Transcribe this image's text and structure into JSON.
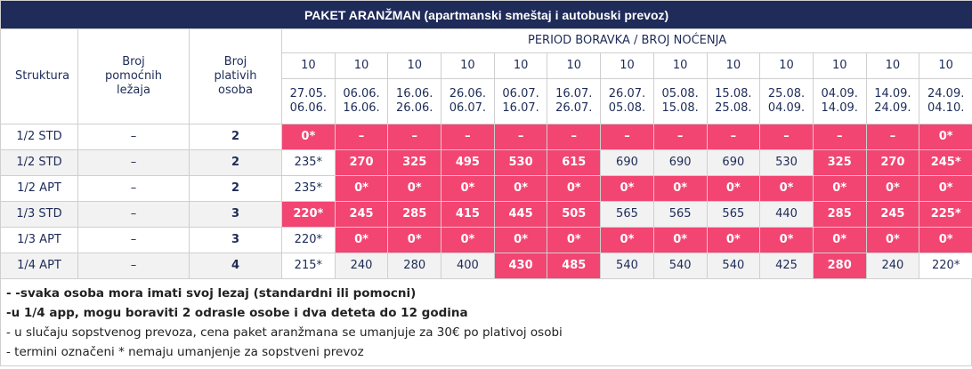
{
  "table": {
    "title": "PAKET ARANŽMAN (apartmanski smeštaj i autobuski prevoz)",
    "headers": {
      "structure": "Struktura",
      "extra_beds": "Broj pomoćnih ležaja",
      "paying_persons": "Broj plativih osoba",
      "period": "PERIOD BORAVKA / BROJ NOĆENJA"
    },
    "nights": [
      "10",
      "10",
      "10",
      "10",
      "10",
      "10",
      "10",
      "10",
      "10",
      "10",
      "10",
      "10",
      "10"
    ],
    "periods": [
      {
        "from": "27.05.",
        "to": "06.06."
      },
      {
        "from": "06.06.",
        "to": "16.06."
      },
      {
        "from": "16.06.",
        "to": "26.06."
      },
      {
        "from": "26.06.",
        "to": "06.07."
      },
      {
        "from": "06.07.",
        "to": "16.07."
      },
      {
        "from": "16.07.",
        "to": "26.07."
      },
      {
        "from": "26.07.",
        "to": "05.08."
      },
      {
        "from": "05.08.",
        "to": "15.08."
      },
      {
        "from": "15.08.",
        "to": "25.08."
      },
      {
        "from": "25.08.",
        "to": "04.09."
      },
      {
        "from": "04.09.",
        "to": "14.09."
      },
      {
        "from": "14.09.",
        "to": "24.09."
      },
      {
        "from": "24.09.",
        "to": "04.10."
      }
    ],
    "rows": [
      {
        "structure": "1/2 STD",
        "extra_beds": "–",
        "paying_persons": "2",
        "row_fill": "#ffffff",
        "prices": [
          "0*",
          "–",
          "–",
          "–",
          "–",
          "–",
          "–",
          "–",
          "–",
          "–",
          "–",
          "–",
          "0*"
        ],
        "fills": [
          "#f24572",
          "#f24572",
          "#f24572",
          "#f24572",
          "#f24572",
          "#f24572",
          "#f24572",
          "#f24572",
          "#f24572",
          "#f24572",
          "#f24572",
          "#f24572",
          "#f24572"
        ]
      },
      {
        "structure": "1/2 STD",
        "extra_beds": "–",
        "paying_persons": "2",
        "row_fill": "#f2f2f2",
        "prices": [
          "235*",
          "270",
          "325",
          "495",
          "530",
          "615",
          "690",
          "690",
          "690",
          "530",
          "325",
          "270",
          "245*"
        ],
        "fills": [
          "#ffffff",
          "#f24572",
          "#f24572",
          "#f24572",
          "#f24572",
          "#f24572",
          "#f2f2f2",
          "#f2f2f2",
          "#f2f2f2",
          "#f2f2f2",
          "#f24572",
          "#f24572",
          "#f24572"
        ]
      },
      {
        "structure": "1/2 APT",
        "extra_beds": "–",
        "paying_persons": "2",
        "row_fill": "#ffffff",
        "prices": [
          "235*",
          "0*",
          "0*",
          "0*",
          "0*",
          "0*",
          "0*",
          "0*",
          "0*",
          "0*",
          "0*",
          "0*",
          "0*"
        ],
        "fills": [
          "#ffffff",
          "#f24572",
          "#f24572",
          "#f24572",
          "#f24572",
          "#f24572",
          "#f24572",
          "#f24572",
          "#f24572",
          "#f24572",
          "#f24572",
          "#f24572",
          "#f24572"
        ]
      },
      {
        "structure": "1/3 STD",
        "extra_beds": "–",
        "paying_persons": "3",
        "row_fill": "#f2f2f2",
        "prices": [
          "220*",
          "245",
          "285",
          "415",
          "445",
          "505",
          "565",
          "565",
          "565",
          "440",
          "285",
          "245",
          "225*"
        ],
        "fills": [
          "#f24572",
          "#f24572",
          "#f24572",
          "#f24572",
          "#f24572",
          "#f24572",
          "#f2f2f2",
          "#f2f2f2",
          "#f2f2f2",
          "#f2f2f2",
          "#f24572",
          "#f24572",
          "#f24572"
        ]
      },
      {
        "structure": "1/3 APT",
        "extra_beds": "–",
        "paying_persons": "3",
        "row_fill": "#ffffff",
        "prices": [
          "220*",
          "0*",
          "0*",
          "0*",
          "0*",
          "0*",
          "0*",
          "0*",
          "0*",
          "0*",
          "0*",
          "0*",
          "0*"
        ],
        "fills": [
          "#ffffff",
          "#f24572",
          "#f24572",
          "#f24572",
          "#f24572",
          "#f24572",
          "#f24572",
          "#f24572",
          "#f24572",
          "#f24572",
          "#f24572",
          "#f24572",
          "#f24572"
        ]
      },
      {
        "structure": "1/4 APT",
        "extra_beds": "–",
        "paying_persons": "4",
        "row_fill": "#f2f2f2",
        "prices": [
          "215*",
          "240",
          "280",
          "400",
          "430",
          "485",
          "540",
          "540",
          "540",
          "425",
          "280",
          "240",
          "220*"
        ],
        "fills": [
          "#ffffff",
          "#f2f2f2",
          "#f2f2f2",
          "#f2f2f2",
          "#f24572",
          "#f24572",
          "#f2f2f2",
          "#f2f2f2",
          "#f2f2f2",
          "#f2f2f2",
          "#f24572",
          "#f2f2f2",
          "#ffffff"
        ]
      }
    ],
    "notes": [
      {
        "text": "- -svaka osoba mora imati svoj lezaj (standardni ili pomocni)",
        "bold": true
      },
      {
        "text": "-u 1/4 app, mogu boraviti 2 odrasle osobe i dva deteta do 12 godina",
        "bold": true
      },
      {
        "text": "- u slučaju sopstvenog prevoza, cena paket aranžmana se umanjuje za 30€ po plativoj osobi",
        "bold": false
      },
      {
        "text": "- termini označeni * nemaju umanjenje za sopstveni prevoz",
        "bold": false
      }
    ]
  }
}
